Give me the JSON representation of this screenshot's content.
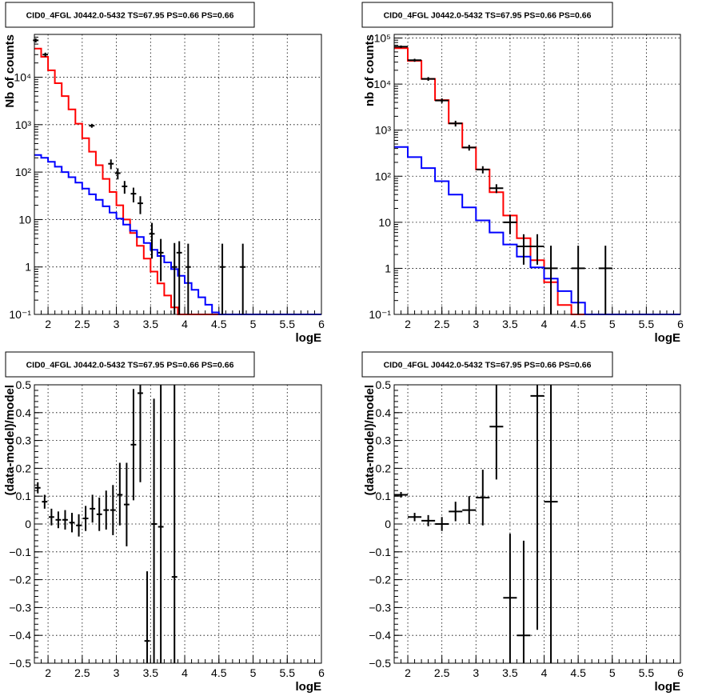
{
  "chart_data": [
    {
      "type": "line",
      "panel": "top-left",
      "title": "CID0_4FGL J0442.0-5432 TS=67.95 PS=0.66 PS=0.66",
      "xlabel": "logE",
      "ylabel": "Nb of counts",
      "xlim": [
        1.8,
        6
      ],
      "ylim": [
        0.1,
        80000
      ],
      "yscale": "log",
      "grid": true,
      "xticks": [
        "2",
        "2.5",
        "3",
        "3.5",
        "4",
        "4.5",
        "5",
        "5.5",
        "6"
      ],
      "yticks": [
        "10⁻¹",
        "1",
        "10",
        "10²",
        "10³",
        "10⁴"
      ],
      "series": [
        {
          "style": "red-step",
          "color": "#ff0000",
          "edges": [
            1.8,
            1.9,
            2.0,
            2.1,
            2.2,
            2.3,
            2.4,
            2.5,
            2.6,
            2.7,
            2.8,
            2.9,
            3.0,
            3.1,
            3.2,
            3.3,
            3.4,
            3.5,
            3.6,
            3.7,
            3.8,
            3.9,
            4.0,
            4.1,
            4.2,
            4.3,
            4.4,
            4.5,
            4.6,
            4.7,
            4.8,
            4.9,
            5.0,
            5.1,
            5.2,
            5.3,
            5.4,
            5.5,
            5.6,
            5.7,
            5.8,
            5.9,
            6.0
          ],
          "values": [
            40000,
            27000,
            14000,
            7500,
            4000,
            2100,
            1050,
            520,
            270,
            140,
            72,
            38,
            20,
            10,
            5.2,
            2.8,
            1.5,
            0.8,
            0.45,
            0.25,
            0.14,
            0.08,
            0.1,
            0.1,
            0.1,
            0.1,
            0.1,
            0.1,
            0.1,
            0.1,
            0.1,
            0.1,
            0.1,
            0.1,
            0.1,
            0.1,
            0.1,
            0.1,
            0.1,
            0.1,
            0.1,
            0.1
          ]
        },
        {
          "style": "blue-step",
          "color": "#0000ff",
          "edges": [
            1.8,
            1.9,
            2.0,
            2.1,
            2.2,
            2.3,
            2.4,
            2.5,
            2.6,
            2.7,
            2.8,
            2.9,
            3.0,
            3.1,
            3.2,
            3.3,
            3.4,
            3.5,
            3.6,
            3.7,
            3.8,
            3.9,
            4.0,
            4.1,
            4.2,
            4.3,
            4.4,
            4.5,
            4.6,
            4.7,
            4.8,
            4.9,
            5.0,
            5.1,
            5.2,
            5.3,
            5.4,
            5.5,
            5.6,
            5.7,
            5.8,
            5.9,
            6.0
          ],
          "values": [
            230,
            200,
            165,
            130,
            100,
            78,
            60,
            45,
            34,
            26,
            19,
            14,
            10.5,
            7.8,
            5.8,
            4.3,
            3.2,
            2.3,
            1.7,
            1.25,
            0.9,
            0.65,
            0.46,
            0.33,
            0.23,
            0.16,
            0.11,
            0.1,
            0.1,
            0.1,
            0.1,
            0.1,
            0.1,
            0.1,
            0.1,
            0.1,
            0.1,
            0.1,
            0.1,
            0.1,
            0.1,
            0.1
          ]
        },
        {
          "style": "data-points",
          "color": "#000000",
          "points": [
            [
              1.82,
              60000,
              0.04,
              6000,
              6000
            ],
            [
              1.96,
              30000,
              0.04,
              3000,
              3000
            ],
            [
              2.64,
              950,
              0.04,
              90,
              90
            ],
            [
              2.92,
              150,
              0.04,
              35,
              35
            ],
            [
              3.02,
              95,
              0.04,
              25,
              25
            ],
            [
              3.12,
              50,
              0.04,
              15,
              15
            ],
            [
              3.25,
              35,
              0.04,
              12,
              12
            ],
            [
              3.35,
              22,
              0.04,
              9,
              9
            ],
            [
              3.52,
              5,
              0.04,
              3.5,
              3.5
            ],
            [
              3.65,
              2,
              0.04,
              1.5,
              1.9
            ],
            [
              3.85,
              1,
              0.04,
              0.9,
              2.2
            ],
            [
              3.92,
              2,
              0.04,
              1.9,
              1.5
            ],
            [
              4.05,
              1,
              0.04,
              0.95,
              2.1
            ],
            [
              4.55,
              1,
              0.04,
              0.95,
              2.1
            ],
            [
              4.85,
              1,
              0.04,
              0.95,
              2.1
            ]
          ]
        }
      ]
    },
    {
      "type": "line",
      "panel": "top-right",
      "title": "CID0_4FGL J0442.0-5432 TS=67.95 PS=0.66 PS=0.66",
      "xlabel": "logE",
      "ylabel": "nb of counts",
      "xlim": [
        1.8,
        6
      ],
      "ylim": [
        0.1,
        120000
      ],
      "yscale": "log",
      "grid": true,
      "xticks": [
        "2",
        "2.5",
        "3",
        "3.5",
        "4",
        "4.5",
        "5",
        "5.5",
        "6"
      ],
      "yticks": [
        "10⁻¹",
        "1",
        "10",
        "10²",
        "10³",
        "10⁴",
        "10⁵"
      ],
      "series": [
        {
          "style": "red-step",
          "color": "#ff0000",
          "edges": [
            1.8,
            2.0,
            2.2,
            2.4,
            2.6,
            2.8,
            3.0,
            3.2,
            3.4,
            3.6,
            3.8,
            4.0,
            4.2,
            4.4,
            4.6,
            4.8,
            5.0,
            5.2,
            5.4,
            5.6,
            5.8,
            6.0
          ],
          "values": [
            60000,
            32000,
            13000,
            4500,
            1400,
            420,
            140,
            45,
            14,
            4.5,
            1.5,
            0.5,
            0.16,
            0.1,
            0.1,
            0.1,
            0.1,
            0.1,
            0.1,
            0.1,
            0.1
          ]
        },
        {
          "style": "blue-step",
          "color": "#0000ff",
          "edges": [
            1.8,
            2.0,
            2.2,
            2.4,
            2.6,
            2.8,
            3.0,
            3.2,
            3.4,
            3.6,
            3.8,
            4.0,
            4.2,
            4.4,
            4.6,
            4.8,
            5.0,
            5.2,
            5.4,
            5.6,
            5.8,
            6.0
          ],
          "values": [
            430,
            260,
            150,
            78,
            40,
            21,
            11,
            6,
            3.3,
            1.8,
            1.05,
            0.6,
            0.32,
            0.18,
            0.1,
            0.1,
            0.1,
            0.1,
            0.1,
            0.1,
            0.1
          ]
        },
        {
          "style": "data-points",
          "color": "#000000",
          "points": [
            [
              1.9,
              65000,
              0.1,
              4000,
              4000
            ],
            [
              2.1,
              33000,
              0.1,
              2500,
              2500
            ],
            [
              2.3,
              13000,
              0.1,
              1200,
              1200
            ],
            [
              2.5,
              4400,
              0.1,
              500,
              500
            ],
            [
              2.7,
              1400,
              0.1,
              200,
              200
            ],
            [
              2.9,
              420,
              0.1,
              60,
              60
            ],
            [
              3.1,
              140,
              0.1,
              25,
              25
            ],
            [
              3.3,
              55,
              0.1,
              12,
              12
            ],
            [
              3.5,
              10,
              0.1,
              4.5,
              4.5
            ],
            [
              3.7,
              3,
              0.1,
              1.8,
              2.5
            ],
            [
              3.9,
              3,
              0.1,
              1.8,
              2.5
            ],
            [
              4.1,
              1,
              0.1,
              0.95,
              2.1
            ],
            [
              4.5,
              1,
              0.1,
              0.95,
              2.1
            ],
            [
              4.9,
              1,
              0.1,
              0.95,
              2.1
            ]
          ]
        }
      ]
    },
    {
      "type": "scatter",
      "panel": "bottom-left",
      "title": "CID0_4FGL J0442.0-5432 TS=67.95 PS=0.66 PS=0.66",
      "xlabel": "logE",
      "ylabel": "(data-model)/model",
      "xlim": [
        1.8,
        6
      ],
      "ylim": [
        -0.5,
        0.5
      ],
      "grid": true,
      "xticks": [
        "2",
        "2.5",
        "3",
        "3.5",
        "4",
        "4.5",
        "5",
        "5.5",
        "6"
      ],
      "yticks": [
        "−0.5",
        "−0.4",
        "−0.3",
        "−0.2",
        "−0.1",
        "0",
        "0.1",
        "0.2",
        "0.3",
        "0.4",
        "0.5"
      ],
      "series": [
        {
          "style": "data-points",
          "color": "#000000",
          "points": [
            [
              1.85,
              0.13,
              0.04,
              0.02,
              0.02
            ],
            [
              1.95,
              0.08,
              0.04,
              0.025,
              0.025
            ],
            [
              2.05,
              0.025,
              0.04,
              0.03,
              0.03
            ],
            [
              2.15,
              0.015,
              0.04,
              0.03,
              0.03
            ],
            [
              2.25,
              0.015,
              0.04,
              0.035,
              0.035
            ],
            [
              2.35,
              0.005,
              0.04,
              0.035,
              0.035
            ],
            [
              2.45,
              -0.005,
              0.04,
              0.04,
              0.04
            ],
            [
              2.55,
              0.02,
              0.04,
              0.045,
              0.045
            ],
            [
              2.65,
              0.055,
              0.04,
              0.05,
              0.05
            ],
            [
              2.75,
              0.035,
              0.04,
              0.06,
              0.06
            ],
            [
              2.85,
              0.05,
              0.04,
              0.07,
              0.07
            ],
            [
              2.95,
              0.05,
              0.04,
              0.09,
              0.09
            ],
            [
              3.05,
              0.105,
              0.04,
              0.11,
              0.115
            ],
            [
              3.15,
              0.07,
              0.04,
              0.15,
              0.15
            ],
            [
              3.25,
              0.285,
              0.04,
              0.2,
              0.2
            ],
            [
              3.35,
              0.47,
              0.04,
              0.32,
              0.03
            ],
            [
              3.45,
              -0.42,
              0.04,
              0.08,
              0.25
            ],
            [
              3.55,
              0.0,
              0.04,
              0.5,
              0.45
            ],
            [
              3.65,
              -0.01,
              0.04,
              0.5,
              0.51
            ],
            [
              3.85,
              -0.19,
              0.04,
              0.31,
              0.69
            ]
          ]
        }
      ]
    },
    {
      "type": "scatter",
      "panel": "bottom-right",
      "title": "CID0_4FGL J0442.0-5432 TS=67.95 PS=0.66 PS=0.66",
      "xlabel": "logE",
      "ylabel": "(data-model)/model",
      "xlim": [
        1.8,
        6
      ],
      "ylim": [
        -0.5,
        0.5
      ],
      "grid": true,
      "xticks": [
        "2",
        "2.5",
        "3",
        "3.5",
        "4",
        "4.5",
        "5",
        "5.5",
        "6"
      ],
      "yticks": [
        "−0.5",
        "−0.4",
        "−0.3",
        "−0.2",
        "−0.1",
        "0",
        "0.1",
        "0.2",
        "0.3",
        "0.4",
        "0.5"
      ],
      "series": [
        {
          "style": "data-points",
          "color": "#000000",
          "points": [
            [
              1.9,
              0.105,
              0.1,
              0.01,
              0.01
            ],
            [
              2.1,
              0.025,
              0.1,
              0.015,
              0.015
            ],
            [
              2.3,
              0.012,
              0.1,
              0.02,
              0.02
            ],
            [
              2.5,
              0.0,
              0.1,
              0.025,
              0.025
            ],
            [
              2.7,
              0.045,
              0.1,
              0.035,
              0.035
            ],
            [
              2.9,
              0.05,
              0.1,
              0.05,
              0.05
            ],
            [
              3.1,
              0.095,
              0.1,
              0.1,
              0.1
            ],
            [
              3.3,
              0.35,
              0.1,
              0.19,
              0.15
            ],
            [
              3.5,
              -0.265,
              0.1,
              0.235,
              0.23
            ],
            [
              3.7,
              -0.4,
              0.1,
              0.1,
              0.34
            ],
            [
              3.9,
              0.46,
              0.1,
              0.84,
              0.04
            ],
            [
              4.1,
              0.08,
              0.1,
              0.58,
              0.42
            ]
          ]
        }
      ]
    }
  ]
}
